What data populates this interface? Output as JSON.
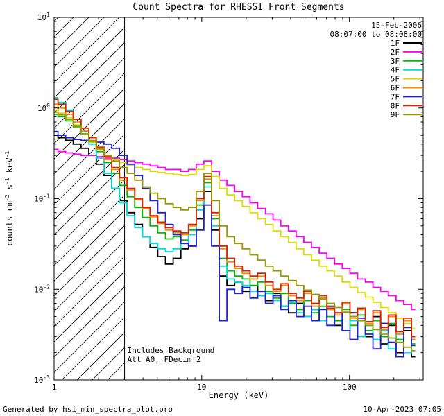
{
  "title": "Count Spectra for RHESSI Front Segments",
  "header": {
    "date": "15-Feb-2006",
    "time_range": "08:07:00 to 08:08:00"
  },
  "annotations": {
    "background": "Includes Background",
    "attenuator": "Att A0, FDecim 2"
  },
  "footer": {
    "generated_by": "Generated by hsi_min_spectra_plot.pro",
    "timestamp": "10-Apr-2023 07:05"
  },
  "chart_data": {
    "type": "line",
    "title": "Count Spectra for RHESSI Front Segments",
    "xlabel": "Energy (keV)",
    "ylabel_segments": [
      {
        "t": "counts cm",
        "sup": false
      },
      {
        "t": "-2",
        "sup": true
      },
      {
        "t": " s",
        "sup": false
      },
      {
        "t": "-1",
        "sup": true
      },
      {
        "t": " keV",
        "sup": false
      },
      {
        "t": "-1",
        "sup": true
      }
    ],
    "x_scale": "log",
    "y_scale": "log",
    "xlim": [
      1,
      316
    ],
    "ylim": [
      0.001,
      10
    ],
    "x_major_ticks": [
      1,
      10,
      100
    ],
    "y_major_exponents": [
      -3,
      -2,
      -1,
      0,
      1
    ],
    "hatch_region": {
      "x_start": 1,
      "x_end": 3
    },
    "energies": [
      1.0,
      1.13,
      1.27,
      1.43,
      1.62,
      1.82,
      2.05,
      2.31,
      2.61,
      2.94,
      3.31,
      3.73,
      4.21,
      4.74,
      5.35,
      6.03,
      6.8,
      7.66,
      8.64,
      9.74,
      10.98,
      12.38,
      13.95,
      15.73,
      17.73,
      19.99,
      22.54,
      25.41,
      28.64,
      32.29,
      36.4,
      41.04,
      46.26,
      52.15,
      58.79,
      66.28,
      74.71,
      84.23,
      94.95,
      107.0,
      120.7,
      136.0,
      153.3,
      172.9,
      194.9,
      219.7,
      247.7,
      279.2
    ],
    "series": [
      {
        "name": "1F",
        "color": "#000000",
        "values": [
          0.5,
          0.47,
          0.44,
          0.4,
          0.36,
          0.3,
          0.24,
          0.18,
          0.13,
          0.095,
          0.07,
          0.052,
          0.038,
          0.029,
          0.023,
          0.019,
          0.022,
          0.028,
          0.03,
          0.06,
          0.12,
          0.045,
          0.014,
          0.011,
          0.012,
          0.0095,
          0.011,
          0.0085,
          0.0075,
          0.009,
          0.0065,
          0.0055,
          0.007,
          0.005,
          0.006,
          0.0045,
          0.0065,
          0.004,
          0.0035,
          0.0055,
          0.0045,
          0.003,
          0.005,
          0.0025,
          0.004,
          0.002,
          0.0035,
          0.0018
        ]
      },
      {
        "name": "2F",
        "color": "#ff00ff",
        "values": [
          0.35,
          0.33,
          0.32,
          0.31,
          0.3,
          0.3,
          0.29,
          0.28,
          0.28,
          0.27,
          0.26,
          0.25,
          0.24,
          0.23,
          0.22,
          0.21,
          0.21,
          0.2,
          0.21,
          0.24,
          0.26,
          0.2,
          0.16,
          0.14,
          0.12,
          0.105,
          0.09,
          0.078,
          0.068,
          0.058,
          0.05,
          0.044,
          0.038,
          0.033,
          0.029,
          0.025,
          0.022,
          0.019,
          0.017,
          0.015,
          0.013,
          0.012,
          0.0105,
          0.0095,
          0.0085,
          0.0075,
          0.0068,
          0.006
        ]
      },
      {
        "name": "3F",
        "color": "#00bb00",
        "values": [
          0.85,
          0.8,
          0.72,
          0.62,
          0.52,
          0.42,
          0.33,
          0.25,
          0.19,
          0.14,
          0.105,
          0.08,
          0.062,
          0.05,
          0.042,
          0.036,
          0.038,
          0.035,
          0.045,
          0.085,
          0.15,
          0.06,
          0.022,
          0.016,
          0.014,
          0.013,
          0.011,
          0.012,
          0.0095,
          0.008,
          0.009,
          0.007,
          0.006,
          0.0075,
          0.0055,
          0.0065,
          0.005,
          0.0045,
          0.006,
          0.004,
          0.0052,
          0.0035,
          0.0045,
          0.003,
          0.0042,
          0.0028,
          0.0038,
          0.0025
        ]
      },
      {
        "name": "4F",
        "color": "#00dddd",
        "values": [
          1.3,
          1.15,
          0.95,
          0.75,
          0.55,
          0.4,
          0.28,
          0.19,
          0.13,
          0.09,
          0.065,
          0.048,
          0.038,
          0.032,
          0.028,
          0.026,
          0.028,
          0.032,
          0.04,
          0.075,
          0.135,
          0.05,
          0.018,
          0.013,
          0.012,
          0.011,
          0.0095,
          0.0085,
          0.009,
          0.0075,
          0.0065,
          0.0072,
          0.0055,
          0.005,
          0.006,
          0.0045,
          0.004,
          0.0055,
          0.0035,
          0.0045,
          0.003,
          0.004,
          0.0028,
          0.0035,
          0.0022,
          0.0032,
          0.002,
          0.0028
        ]
      },
      {
        "name": "5F",
        "color": "#dddd00",
        "values": [
          0.95,
          0.88,
          0.78,
          0.65,
          0.52,
          0.42,
          0.35,
          0.3,
          0.27,
          0.25,
          0.235,
          0.22,
          0.21,
          0.2,
          0.195,
          0.19,
          0.185,
          0.18,
          0.185,
          0.21,
          0.23,
          0.175,
          0.13,
          0.11,
          0.095,
          0.082,
          0.07,
          0.06,
          0.052,
          0.044,
          0.038,
          0.033,
          0.028,
          0.024,
          0.021,
          0.018,
          0.016,
          0.014,
          0.012,
          0.0105,
          0.0092,
          0.0082,
          0.0072,
          0.0063,
          0.0055,
          0.0048,
          0.0042,
          0.0037
        ]
      },
      {
        "name": "6F",
        "color": "#ff8800",
        "values": [
          1.1,
          1.0,
          0.85,
          0.7,
          0.56,
          0.44,
          0.35,
          0.27,
          0.21,
          0.16,
          0.125,
          0.098,
          0.078,
          0.063,
          0.053,
          0.045,
          0.042,
          0.04,
          0.05,
          0.095,
          0.165,
          0.065,
          0.028,
          0.02,
          0.017,
          0.015,
          0.013,
          0.014,
          0.011,
          0.0095,
          0.011,
          0.0085,
          0.0075,
          0.009,
          0.0065,
          0.008,
          0.006,
          0.0052,
          0.007,
          0.0048,
          0.006,
          0.0042,
          0.0055,
          0.0036,
          0.005,
          0.0032,
          0.0045,
          0.0028
        ]
      },
      {
        "name": "7F",
        "color": "#2222cc",
        "values": [
          0.55,
          0.5,
          0.47,
          0.45,
          0.44,
          0.43,
          0.42,
          0.4,
          0.36,
          0.3,
          0.24,
          0.18,
          0.13,
          0.095,
          0.07,
          0.052,
          0.04,
          0.032,
          0.03,
          0.045,
          0.085,
          0.03,
          0.0045,
          0.01,
          0.009,
          0.0105,
          0.008,
          0.0095,
          0.007,
          0.0085,
          0.006,
          0.0075,
          0.005,
          0.0065,
          0.0045,
          0.006,
          0.004,
          0.0055,
          0.0035,
          0.0028,
          0.0048,
          0.0032,
          0.0022,
          0.0042,
          0.0026,
          0.0018,
          0.0038,
          0.0024
        ]
      },
      {
        "name": "8F",
        "color": "#dd2200",
        "values": [
          1.25,
          1.1,
          0.92,
          0.75,
          0.6,
          0.47,
          0.37,
          0.29,
          0.22,
          0.17,
          0.13,
          0.1,
          0.08,
          0.065,
          0.055,
          0.048,
          0.044,
          0.042,
          0.052,
          0.1,
          0.175,
          0.07,
          0.03,
          0.022,
          0.018,
          0.016,
          0.014,
          0.015,
          0.012,
          0.01,
          0.0115,
          0.009,
          0.008,
          0.0095,
          0.007,
          0.0085,
          0.0062,
          0.0055,
          0.0072,
          0.005,
          0.0062,
          0.0044,
          0.0058,
          0.0038,
          0.0052,
          0.0034,
          0.0048,
          0.003
        ]
      },
      {
        "name": "9F",
        "color": "#999900",
        "values": [
          0.9,
          0.84,
          0.75,
          0.63,
          0.52,
          0.43,
          0.36,
          0.3,
          0.26,
          0.22,
          0.19,
          0.16,
          0.135,
          0.115,
          0.1,
          0.088,
          0.08,
          0.075,
          0.08,
          0.12,
          0.19,
          0.095,
          0.05,
          0.038,
          0.032,
          0.028,
          0.024,
          0.021,
          0.018,
          0.016,
          0.014,
          0.0125,
          0.011,
          0.0098,
          0.0088,
          0.0078,
          0.007,
          0.0063,
          0.0056,
          0.005,
          0.0045,
          0.004,
          0.0036,
          0.0032,
          0.0029,
          0.0026,
          0.0023,
          0.0021
        ]
      }
    ]
  }
}
